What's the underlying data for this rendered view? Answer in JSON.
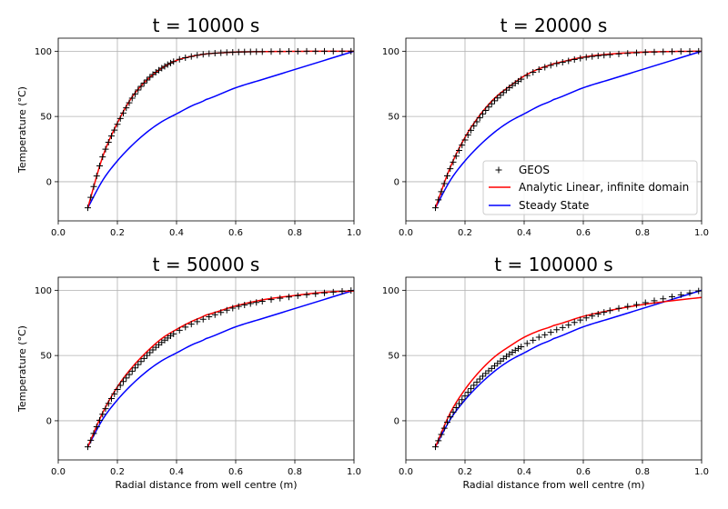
{
  "figure": {
    "background": "#ffffff"
  },
  "chart_data": [
    {
      "type": "line",
      "title": "t = 10000 s",
      "xlabel": "",
      "ylabel": "Temperature (°C)",
      "xlim": [
        0.0,
        1.0
      ],
      "ylim": [
        -30,
        110
      ],
      "xticks": [
        "0.0",
        "0.2",
        "0.4",
        "0.6",
        "0.8",
        "1.0"
      ],
      "yticks": [
        "0",
        "50",
        "100"
      ],
      "grid": true,
      "legend": null,
      "series": [
        {
          "name": "GEOS",
          "style": "markers",
          "marker": "+",
          "color": "#000000",
          "x": [
            0.1,
            0.15,
            0.2,
            0.25,
            0.3,
            0.35,
            0.4,
            0.45,
            0.5,
            0.6,
            0.7,
            0.8,
            0.9,
            1.0
          ],
          "y": [
            -20,
            19,
            44,
            64,
            78,
            87,
            93,
            96,
            98,
            99.3,
            99.7,
            99.9,
            100,
            100
          ]
        },
        {
          "name": "Analytic Linear, infinite domain",
          "style": "line",
          "color": "#ff0000",
          "x": [
            0.1,
            0.15,
            0.2,
            0.25,
            0.3,
            0.35,
            0.4,
            0.45,
            0.5,
            0.6,
            0.7,
            0.8,
            0.9,
            1.0
          ],
          "y": [
            -20,
            19,
            45,
            65,
            78,
            87,
            93,
            96,
            98,
            99.3,
            99.7,
            99.9,
            100,
            100
          ]
        },
        {
          "name": "Steady State",
          "style": "line",
          "color": "#0000ff",
          "x": [
            0.1,
            0.15,
            0.2,
            0.25,
            0.3,
            0.35,
            0.4,
            0.45,
            0.5,
            0.6,
            0.7,
            0.8,
            0.9,
            1.0
          ],
          "y": [
            -20,
            1,
            16,
            28,
            38,
            46,
            52,
            58,
            63,
            72,
            79,
            86,
            93,
            100
          ]
        }
      ]
    },
    {
      "type": "line",
      "title": "t = 20000 s",
      "xlabel": "",
      "ylabel": "",
      "xlim": [
        0.0,
        1.0
      ],
      "ylim": [
        -30,
        110
      ],
      "xticks": [
        "0.0",
        "0.2",
        "0.4",
        "0.6",
        "0.8",
        "1.0"
      ],
      "yticks": [
        "0",
        "50",
        "100"
      ],
      "grid": true,
      "legend": "lower-right",
      "series": [
        {
          "name": "GEOS",
          "style": "markers",
          "marker": "+",
          "color": "#000000",
          "x": [
            0.1,
            0.15,
            0.2,
            0.25,
            0.3,
            0.35,
            0.4,
            0.45,
            0.5,
            0.6,
            0.7,
            0.8,
            0.9,
            1.0
          ],
          "y": [
            -20,
            10,
            32,
            49,
            62,
            72,
            80,
            86,
            90,
            95,
            97.5,
            99,
            99.7,
            100
          ]
        },
        {
          "name": "Analytic Linear, infinite domain",
          "style": "line",
          "color": "#ff0000",
          "x": [
            0.1,
            0.15,
            0.2,
            0.25,
            0.3,
            0.35,
            0.4,
            0.45,
            0.5,
            0.6,
            0.7,
            0.8,
            0.9,
            1.0
          ],
          "y": [
            -20,
            11,
            34,
            51,
            64,
            73,
            81,
            86.5,
            90.5,
            95.5,
            98,
            99.2,
            99.8,
            100
          ]
        },
        {
          "name": "Steady State",
          "style": "line",
          "color": "#0000ff",
          "x": [
            0.1,
            0.15,
            0.2,
            0.25,
            0.3,
            0.35,
            0.4,
            0.45,
            0.5,
            0.6,
            0.7,
            0.8,
            0.9,
            1.0
          ],
          "y": [
            -20,
            1,
            16,
            28,
            38,
            46,
            52,
            58,
            63,
            72,
            79,
            86,
            93,
            100
          ]
        }
      ]
    },
    {
      "type": "line",
      "title": "t = 50000 s",
      "xlabel": "Radial distance from well centre (m)",
      "ylabel": "Temperature (°C)",
      "xlim": [
        0.0,
        1.0
      ],
      "ylim": [
        -30,
        110
      ],
      "xticks": [
        "0.0",
        "0.2",
        "0.4",
        "0.6",
        "0.8",
        "1.0"
      ],
      "yticks": [
        "0",
        "50",
        "100"
      ],
      "grid": true,
      "legend": null,
      "series": [
        {
          "name": "GEOS",
          "style": "markers",
          "marker": "+",
          "color": "#000000",
          "x": [
            0.1,
            0.15,
            0.2,
            0.25,
            0.3,
            0.35,
            0.4,
            0.45,
            0.5,
            0.6,
            0.7,
            0.8,
            0.9,
            1.0
          ],
          "y": [
            -20,
            5,
            24,
            38,
            50,
            60,
            68,
            74,
            79,
            87,
            92,
            95.5,
            98,
            100
          ]
        },
        {
          "name": "Analytic Linear, infinite domain",
          "style": "line",
          "color": "#ff0000",
          "x": [
            0.1,
            0.15,
            0.2,
            0.25,
            0.3,
            0.35,
            0.4,
            0.45,
            0.5,
            0.6,
            0.7,
            0.8,
            0.9,
            1.0
          ],
          "y": [
            -20,
            6,
            26,
            41,
            53,
            63,
            70,
            76,
            81,
            88,
            93,
            96,
            98.5,
            99.5
          ]
        },
        {
          "name": "Steady State",
          "style": "line",
          "color": "#0000ff",
          "x": [
            0.1,
            0.15,
            0.2,
            0.25,
            0.3,
            0.35,
            0.4,
            0.45,
            0.5,
            0.6,
            0.7,
            0.8,
            0.9,
            1.0
          ],
          "y": [
            -20,
            1,
            16,
            28,
            38,
            46,
            52,
            58,
            63,
            72,
            79,
            86,
            93,
            100
          ]
        }
      ]
    },
    {
      "type": "line",
      "title": "t = 100000 s",
      "xlabel": "Radial distance from well centre (m)",
      "ylabel": "",
      "xlim": [
        0.0,
        1.0
      ],
      "ylim": [
        -30,
        110
      ],
      "xticks": [
        "0.0",
        "0.2",
        "0.4",
        "0.6",
        "0.8",
        "1.0"
      ],
      "yticks": [
        "0",
        "50",
        "100"
      ],
      "grid": true,
      "legend": null,
      "series": [
        {
          "name": "GEOS",
          "style": "markers",
          "marker": "+",
          "color": "#000000",
          "x": [
            0.1,
            0.15,
            0.2,
            0.25,
            0.3,
            0.35,
            0.4,
            0.45,
            0.5,
            0.6,
            0.7,
            0.8,
            0.9,
            1.0
          ],
          "y": [
            -20,
            3,
            19,
            32,
            42,
            51,
            58,
            64,
            69,
            78,
            85,
            90,
            95,
            100
          ]
        },
        {
          "name": "Analytic Linear, infinite domain",
          "style": "line",
          "color": "#ff0000",
          "x": [
            0.1,
            0.15,
            0.2,
            0.25,
            0.3,
            0.35,
            0.4,
            0.45,
            0.5,
            0.6,
            0.7,
            0.8,
            0.9,
            1.0
          ],
          "y": [
            -20,
            6,
            24,
            38,
            49,
            57,
            64,
            69,
            73,
            80,
            85,
            89,
            92,
            94.5
          ]
        },
        {
          "name": "Steady State",
          "style": "line",
          "color": "#0000ff",
          "x": [
            0.1,
            0.15,
            0.2,
            0.25,
            0.3,
            0.35,
            0.4,
            0.45,
            0.5,
            0.6,
            0.7,
            0.8,
            0.9,
            1.0
          ],
          "y": [
            -20,
            1,
            16,
            28,
            38,
            46,
            52,
            58,
            63,
            72,
            79,
            86,
            93,
            100
          ]
        }
      ]
    }
  ]
}
